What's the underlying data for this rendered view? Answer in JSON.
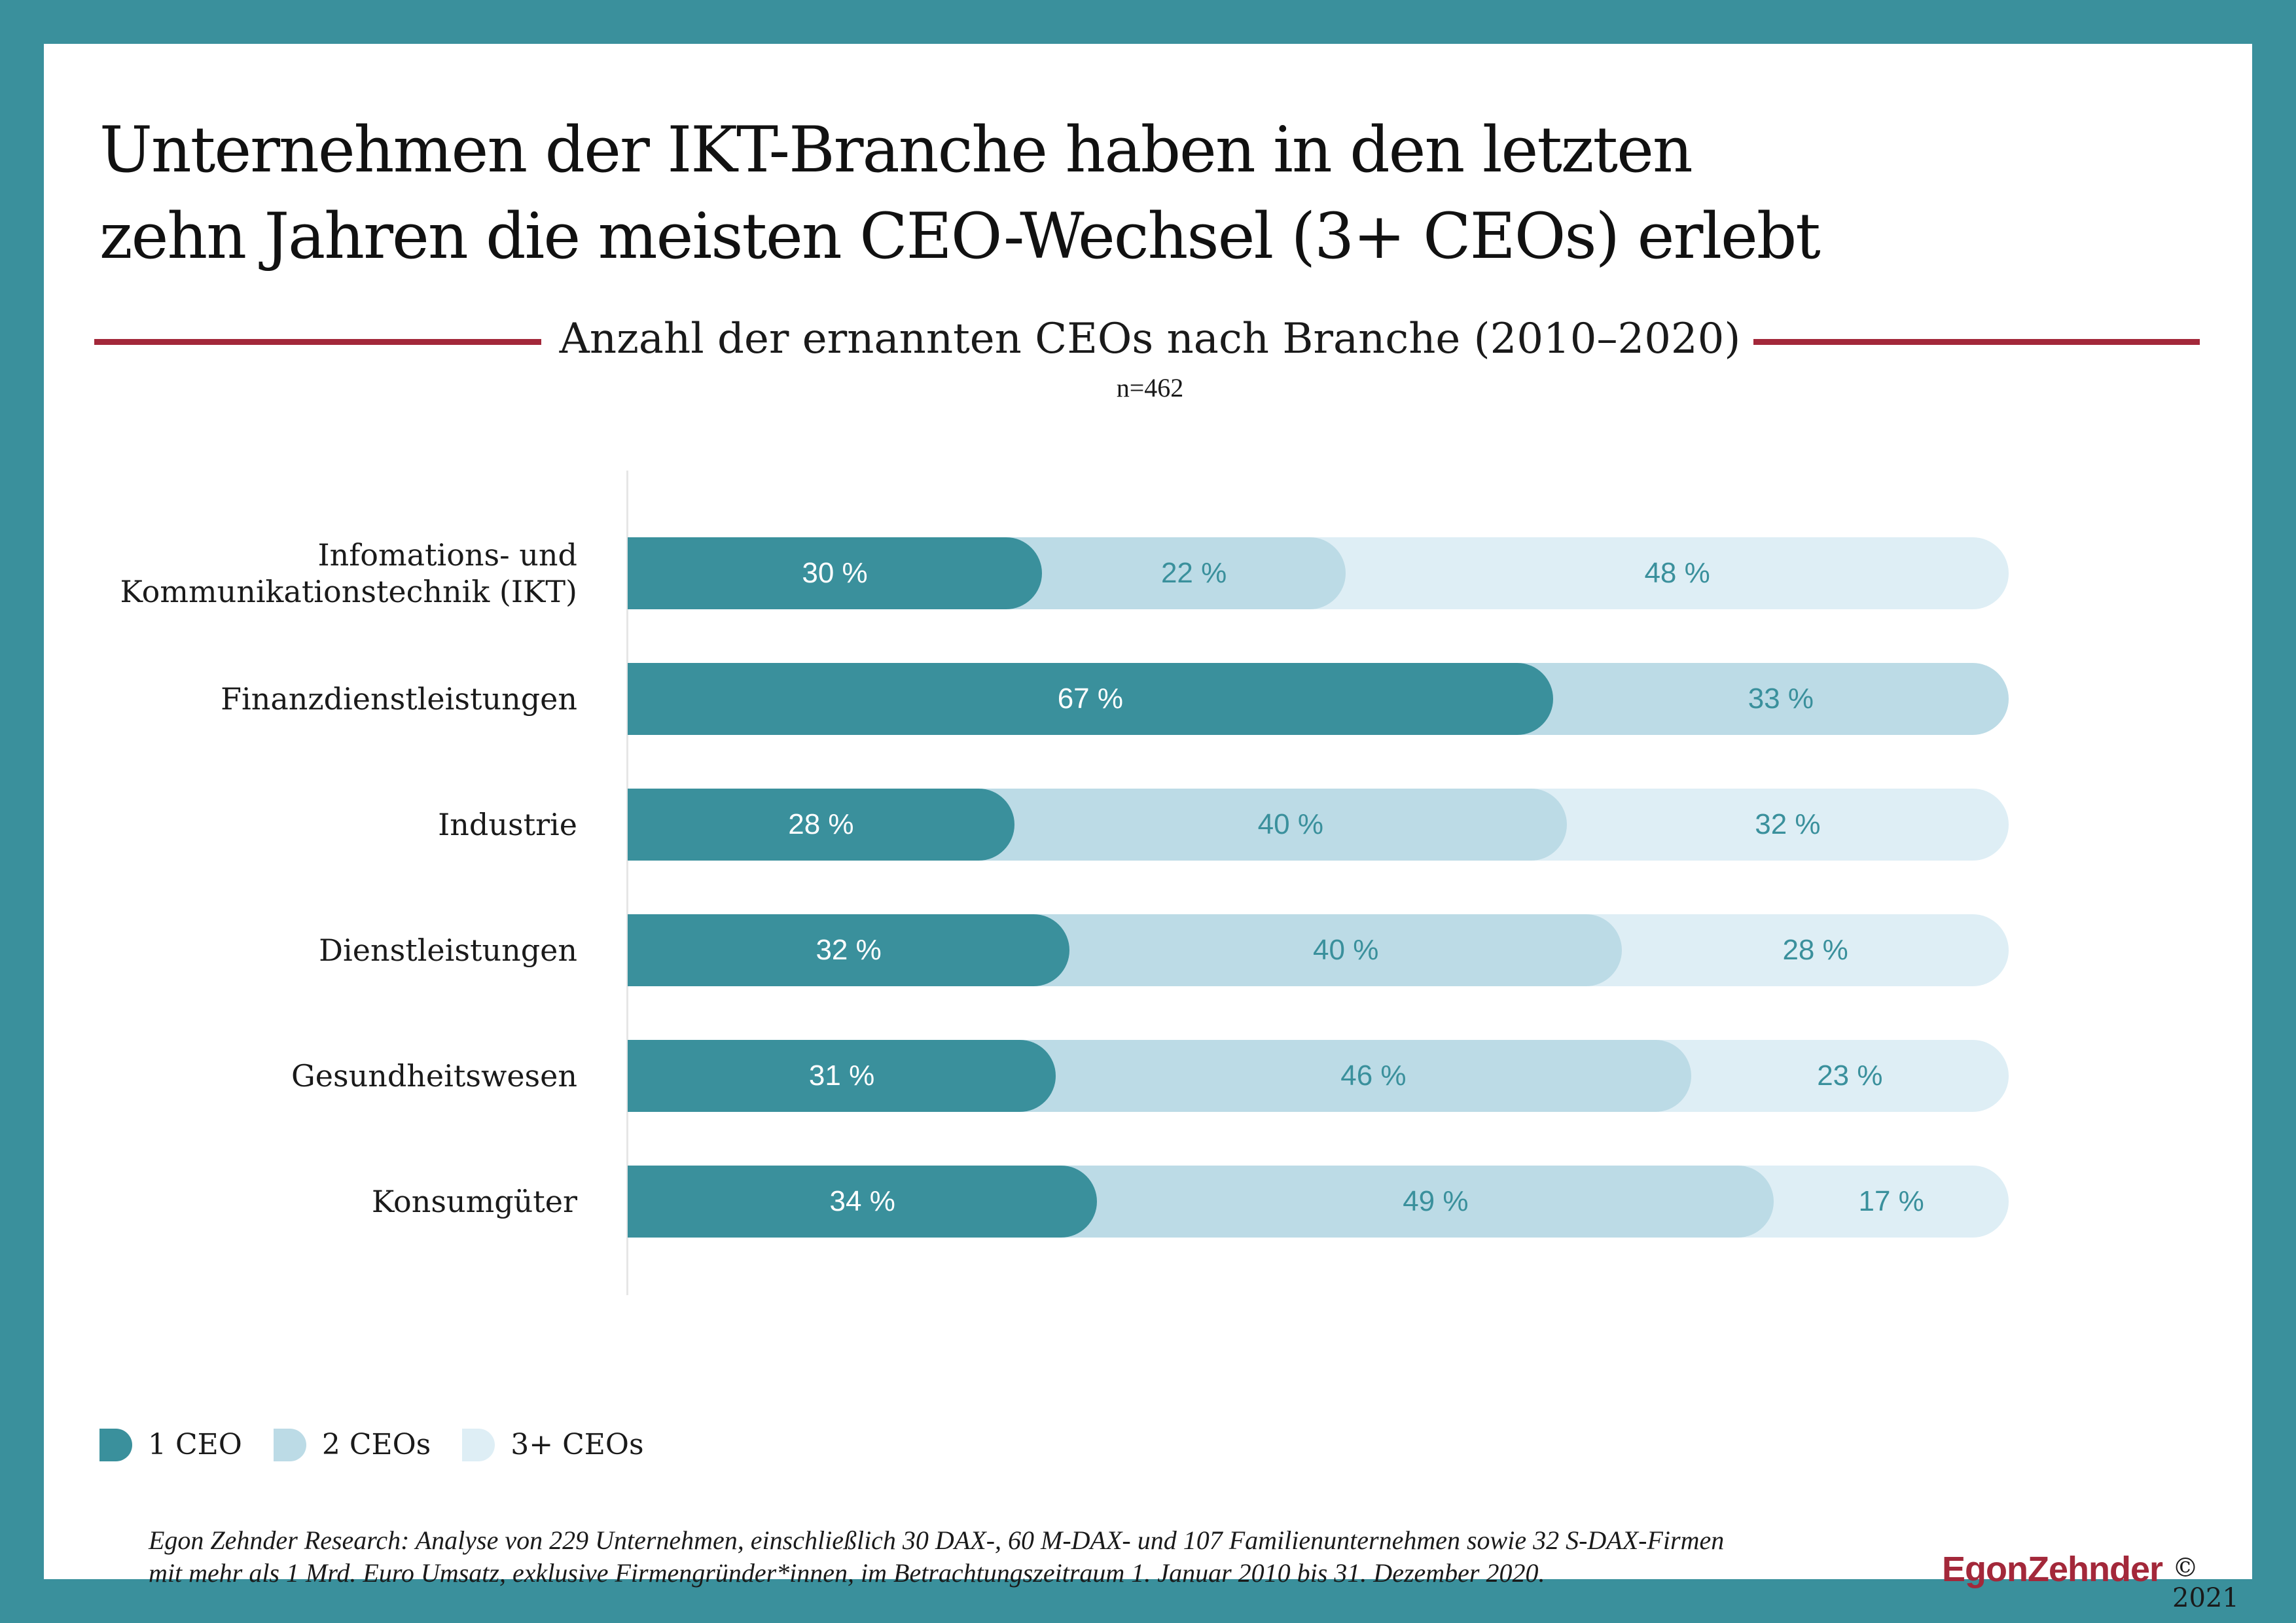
{
  "title_lines": [
    "Unternehmen der IKT-Branche haben in den letzten",
    "zehn Jahren die meisten CEO-Wechsel (3+ CEOs) erlebt"
  ],
  "subtitle": "Anzahl der ernannten CEOs nach Branche (2010–2020)",
  "sample_note": "n=462",
  "colors": {
    "frame": "#3a909c",
    "one_ceo": "#3a909c",
    "two_ceos": "#bcdbe6",
    "three_plus_ceos": "#deeef5",
    "accent_rule": "#a3283a",
    "brand": "#a3283a"
  },
  "chart_data": {
    "type": "bar",
    "orientation": "horizontal",
    "stacked": true,
    "unit": "%",
    "categories": [
      [
        "Infomations- und",
        "Kommunikationstechnik (IKT)"
      ],
      [
        "Finanzdienstleistungen"
      ],
      [
        "Industrie"
      ],
      [
        "Dienstleistungen"
      ],
      [
        "Gesundheitswesen"
      ],
      [
        "Konsumgüter"
      ]
    ],
    "series": [
      {
        "name": "1 CEO",
        "values": [
          30,
          67,
          28,
          32,
          31,
          34
        ],
        "labels": [
          "30 %",
          "67 %",
          "28 %",
          "32 %",
          "31 %",
          "34 %"
        ]
      },
      {
        "name": "2 CEOs",
        "values": [
          22,
          33,
          40,
          40,
          46,
          49
        ],
        "labels": [
          "22 %",
          "33 %",
          "40 %",
          "40 %",
          "46 %",
          "49 %"
        ]
      },
      {
        "name": "3+ CEOs",
        "values": [
          48,
          0,
          32,
          28,
          23,
          17
        ],
        "labels": [
          "48 %",
          "",
          "32 %",
          "28 %",
          "23 %",
          "17 %"
        ]
      }
    ],
    "xlim": [
      0,
      100
    ],
    "grid": false,
    "legend_position": "bottom-left"
  },
  "footnote_lines": [
    "Egon Zehnder Research: Analyse von 229 Unternehmen, einschließlich 30 DAX-, 60 M-DAX- und 107 Familienunternehmen sowie 32 S-DAX-Firmen",
    "mit mehr als 1 Mrd. Euro Umsatz, exklusive Firmengründer*innen, im Betrachtungszeitraum 1. Januar 2010 bis 31. Dezember 2020."
  ],
  "brand": "EgonZehnder",
  "copyright": "© 2021"
}
